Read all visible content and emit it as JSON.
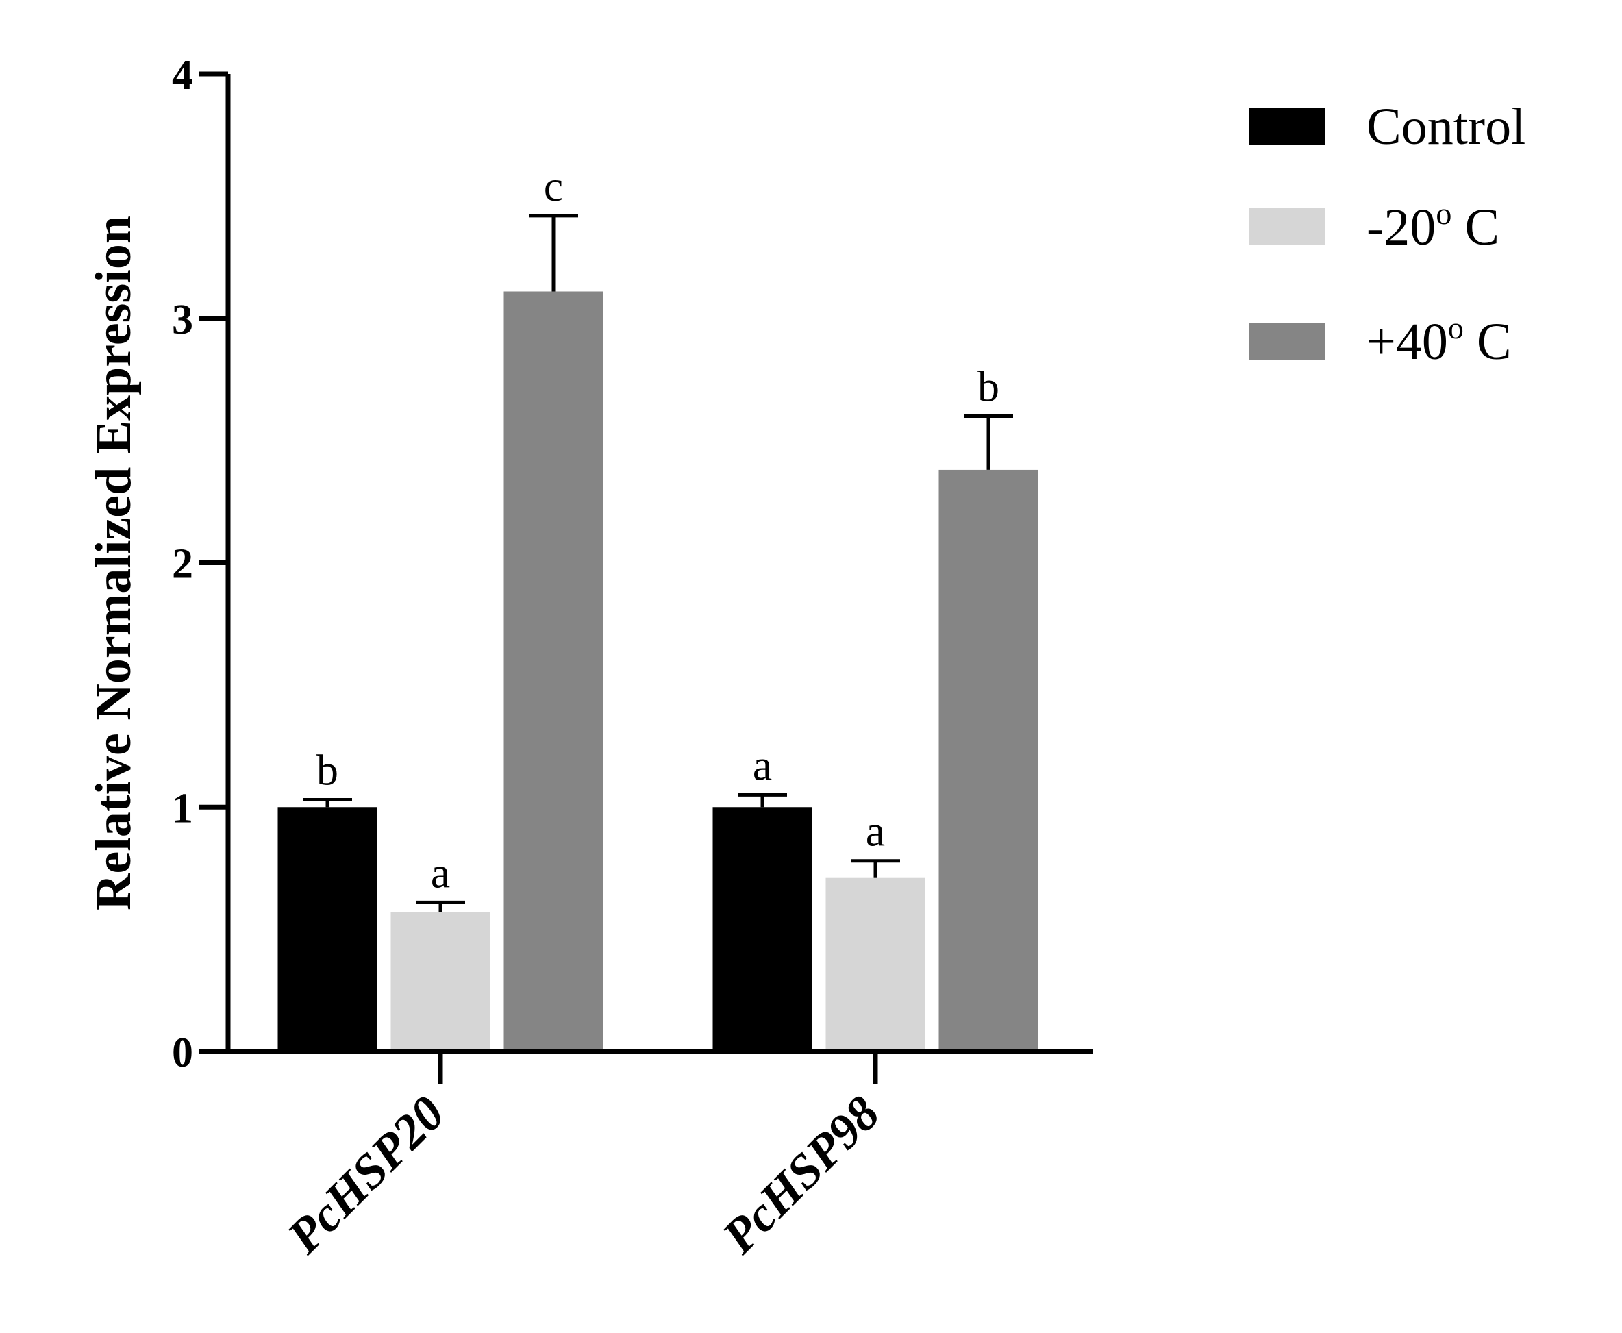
{
  "chart_data": {
    "type": "bar",
    "title": "",
    "xlabel": "",
    "ylabel": "Relative Normalized Expression",
    "ylim": [
      0,
      4
    ],
    "yticks": [
      "0",
      "1",
      "2",
      "3",
      "4"
    ],
    "categories": [
      "PcHSP20",
      "PcHSP98"
    ],
    "series": [
      {
        "name": "Control",
        "color": "#000000",
        "values": [
          1.0,
          1.0
        ],
        "errors": [
          0.03,
          0.05
        ],
        "sig": [
          "b",
          "a"
        ]
      },
      {
        "name": "-20",
        "name_sup": "o",
        "name_tail": " C",
        "color": "#d6d6d6",
        "values": [
          0.57,
          0.71
        ],
        "errors": [
          0.04,
          0.07
        ],
        "sig": [
          "a",
          "a"
        ]
      },
      {
        "name": "+40",
        "name_sup": "o",
        "name_tail": " C",
        "color": "#858585",
        "values": [
          3.11,
          2.38
        ],
        "errors": [
          0.31,
          0.22
        ],
        "sig": [
          "c",
          "b"
        ]
      }
    ],
    "legend_position": "top-right",
    "grid": false
  }
}
